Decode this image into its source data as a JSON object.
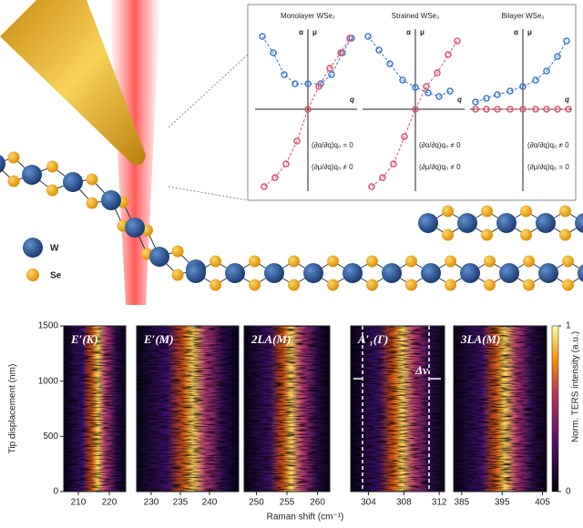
{
  "illustration": {
    "legend": [
      {
        "label": "W"
      },
      {
        "label": "Se"
      }
    ]
  },
  "inset": {
    "panels": [
      {
        "title": "Monolayer WSe₂",
        "alpha": "α",
        "mu": "μ",
        "q": "q",
        "conditions": [
          "(∂α/∂q)q₀ = 0",
          "(∂μ/∂q)q₀ ≠ 0"
        ]
      },
      {
        "title": "Strained WSe₂",
        "alpha": "α",
        "mu": "μ",
        "q": "q",
        "conditions": [
          "(∂α/∂q)q₀ ≠ 0",
          "(∂μ/∂q)q₀ ≠ 0"
        ]
      },
      {
        "title": "Bilayer WSe₂",
        "alpha": "α",
        "mu": "μ",
        "q": "q",
        "conditions": [
          "(∂α/∂q)q₀ ≠ 0",
          "(∂μ/∂q)q₀ = 0"
        ]
      }
    ]
  },
  "heatmaps": {
    "ylabel": "Tip displacement (nm)",
    "xlabel": "Raman shift (cm⁻¹)",
    "ylim": [
      0,
      1500
    ],
    "yticks": [
      0,
      500,
      1000,
      1500
    ],
    "colorbar": {
      "label": "Norm. TERS intensity (a.u.)",
      "ticks": [
        0,
        1
      ]
    },
    "annotation": "Δν",
    "panels": [
      {
        "label": "E′(K)",
        "xlim": [
          205.3,
          225.3
        ],
        "xticks": [
          210,
          220
        ]
      },
      {
        "label": "E′(M)",
        "xlim": [
          227.5,
          245
        ],
        "xticks": [
          230,
          235,
          240
        ]
      },
      {
        "label": "2LA(M)",
        "xlim": [
          248,
          262
        ],
        "xticks": [
          250,
          255,
          260
        ]
      },
      {
        "label": "A′₁(Γ)",
        "xlim": [
          302,
          312.6
        ],
        "xticks": [
          304,
          308,
          312
        ]
      },
      {
        "label": "3LA(M)",
        "xlim": [
          383,
          406
        ],
        "xticks": [
          385,
          395,
          405
        ]
      }
    ]
  }
}
